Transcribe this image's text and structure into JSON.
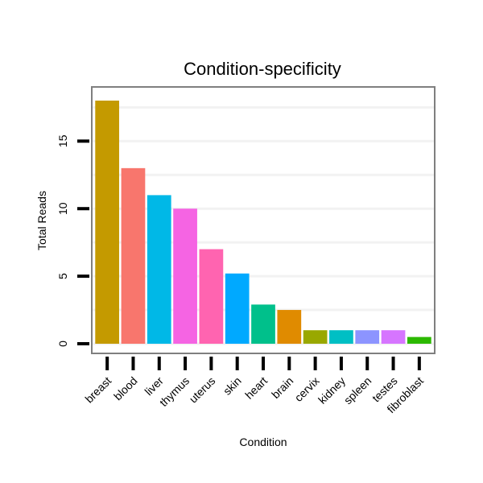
{
  "chart_data": {
    "type": "bar",
    "title": "Condition-specificity",
    "xlabel": "Condition",
    "ylabel": "Total Reads",
    "ylim": [
      -0.7,
      18.9
    ],
    "yticks": [
      0,
      5,
      10,
      15
    ],
    "yticks_text": [
      "0",
      "5",
      "10",
      "15"
    ],
    "grid": true,
    "categories": [
      "breast",
      "blood",
      "liver",
      "thymus",
      "uterus",
      "skin",
      "heart",
      "brain",
      "cervix",
      "kidney",
      "spleen",
      "testes",
      "fibroblast"
    ],
    "values": [
      18,
      13,
      11,
      10,
      7,
      5.2,
      2.9,
      2.5,
      1,
      1,
      1,
      1,
      0.5
    ],
    "colors": [
      "#C49A00",
      "#F8766D",
      "#00B8E7",
      "#F564E3",
      "#FF64B0",
      "#00A9FF",
      "#00C08B",
      "#E08B00",
      "#99A800",
      "#00BFC4",
      "#8C94FF",
      "#D675FF",
      "#2CB900"
    ]
  },
  "theme": {
    "background": "#ffffff",
    "panel_border": "#7f7f7f",
    "grid": "#f2f2f2",
    "tick": "#000000"
  }
}
